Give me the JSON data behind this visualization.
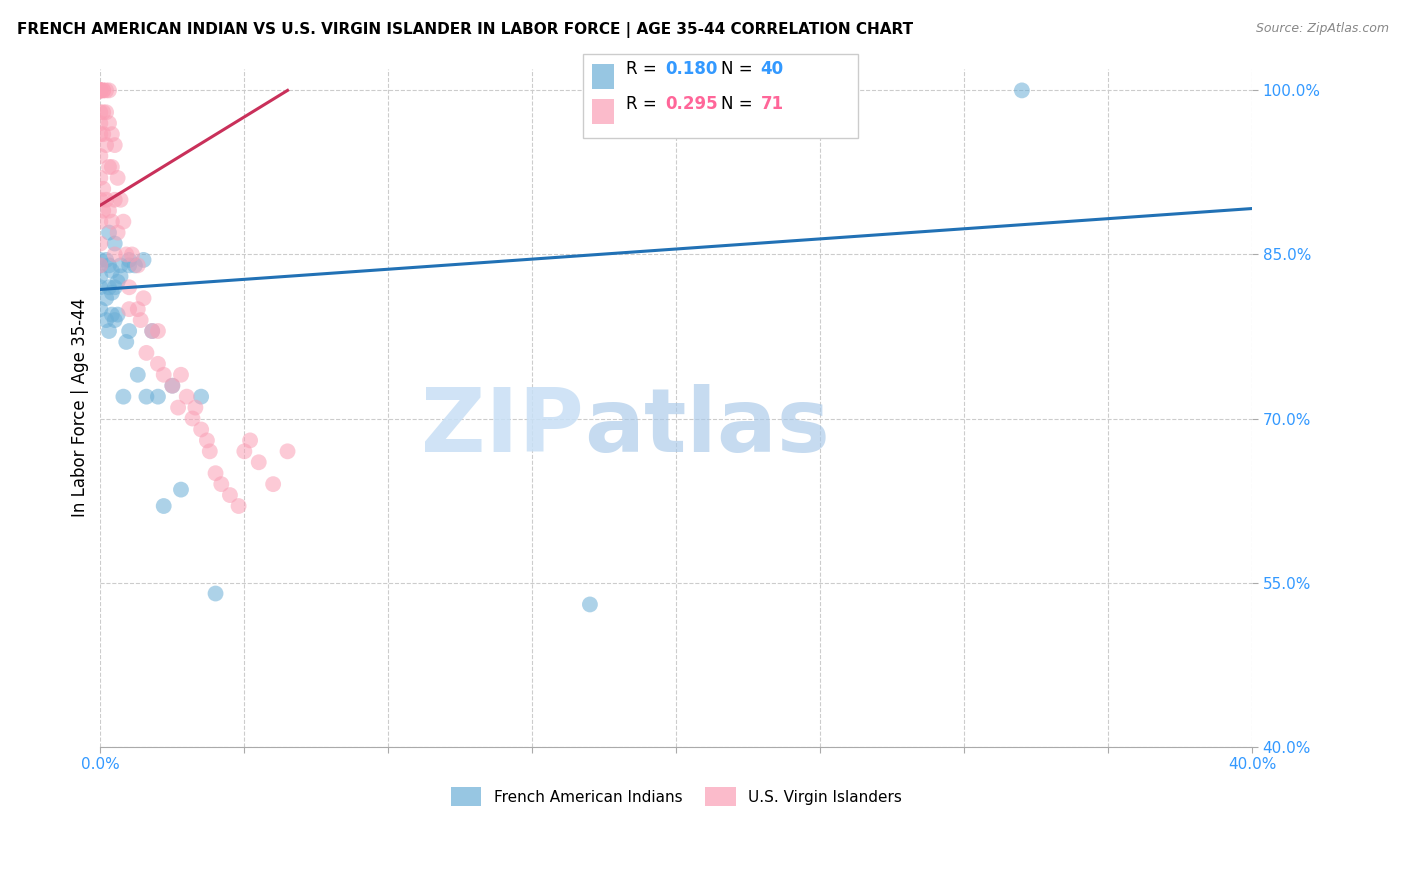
{
  "title": "FRENCH AMERICAN INDIAN VS U.S. VIRGIN ISLANDER IN LABOR FORCE | AGE 35-44 CORRELATION CHART",
  "source": "Source: ZipAtlas.com",
  "ylabel": "In Labor Force | Age 35-44",
  "xlim": [
    0.0,
    0.4
  ],
  "ylim": [
    0.4,
    1.02
  ],
  "yticks": [
    0.4,
    0.55,
    0.7,
    0.85,
    1.0
  ],
  "ytick_labels": [
    "40.0%",
    "55.0%",
    "70.0%",
    "85.0%",
    "100.0%"
  ],
  "xticks": [
    0.0,
    0.05,
    0.1,
    0.15,
    0.2,
    0.25,
    0.3,
    0.35,
    0.4
  ],
  "xtick_labels": [
    "0.0%",
    "",
    "",
    "",
    "",
    "",
    "",
    "",
    "40.0%"
  ],
  "blue_R": 0.18,
  "blue_N": 40,
  "pink_R": 0.295,
  "pink_N": 71,
  "blue_color": "#6baed6",
  "pink_color": "#fa9fb5",
  "blue_line_color": "#2171b5",
  "pink_line_color": "#c9305a",
  "watermark_zip": "ZIP",
  "watermark_atlas": "atlas",
  "legend_label_blue": "French American Indians",
  "legend_label_pink": "U.S. Virgin Islanders",
  "blue_scatter_x": [
    0.0,
    0.0,
    0.0,
    0.0,
    0.0,
    0.002,
    0.002,
    0.002,
    0.003,
    0.003,
    0.003,
    0.003,
    0.004,
    0.004,
    0.004,
    0.005,
    0.005,
    0.005,
    0.006,
    0.006,
    0.007,
    0.007,
    0.008,
    0.009,
    0.01,
    0.01,
    0.01,
    0.012,
    0.013,
    0.015,
    0.016,
    0.018,
    0.02,
    0.022,
    0.025,
    0.028,
    0.035,
    0.04,
    0.17,
    0.32
  ],
  "blue_scatter_y": [
    0.8,
    0.82,
    0.84,
    0.845,
    0.83,
    0.79,
    0.81,
    0.845,
    0.78,
    0.82,
    0.84,
    0.87,
    0.795,
    0.815,
    0.835,
    0.79,
    0.82,
    0.86,
    0.795,
    0.825,
    0.83,
    0.84,
    0.72,
    0.77,
    0.84,
    0.845,
    0.78,
    0.84,
    0.74,
    0.845,
    0.72,
    0.78,
    0.72,
    0.62,
    0.73,
    0.635,
    0.72,
    0.54,
    0.53,
    1.0
  ],
  "pink_scatter_x": [
    0.0,
    0.0,
    0.0,
    0.0,
    0.0,
    0.0,
    0.0,
    0.0,
    0.0,
    0.0,
    0.0,
    0.0,
    0.0,
    0.0,
    0.0,
    0.0,
    0.001,
    0.001,
    0.001,
    0.001,
    0.001,
    0.001,
    0.002,
    0.002,
    0.002,
    0.002,
    0.003,
    0.003,
    0.003,
    0.003,
    0.004,
    0.004,
    0.004,
    0.005,
    0.005,
    0.005,
    0.006,
    0.006,
    0.007,
    0.008,
    0.009,
    0.01,
    0.01,
    0.011,
    0.013,
    0.013,
    0.014,
    0.015,
    0.016,
    0.018,
    0.02,
    0.02,
    0.022,
    0.025,
    0.027,
    0.028,
    0.03,
    0.032,
    0.033,
    0.035,
    0.037,
    0.038,
    0.04,
    0.042,
    0.045,
    0.048,
    0.05,
    0.052,
    0.055,
    0.06,
    0.065
  ],
  "pink_scatter_y": [
    1.0,
    1.0,
    1.0,
    1.0,
    1.0,
    1.0,
    1.0,
    0.98,
    0.97,
    0.96,
    0.94,
    0.92,
    0.9,
    0.88,
    0.86,
    0.84,
    1.0,
    1.0,
    0.98,
    0.96,
    0.91,
    0.89,
    1.0,
    0.98,
    0.95,
    0.9,
    1.0,
    0.97,
    0.93,
    0.89,
    0.96,
    0.93,
    0.88,
    0.95,
    0.9,
    0.85,
    0.92,
    0.87,
    0.9,
    0.88,
    0.85,
    0.82,
    0.8,
    0.85,
    0.84,
    0.8,
    0.79,
    0.81,
    0.76,
    0.78,
    0.75,
    0.78,
    0.74,
    0.73,
    0.71,
    0.74,
    0.72,
    0.7,
    0.71,
    0.69,
    0.68,
    0.67,
    0.65,
    0.64,
    0.63,
    0.62,
    0.67,
    0.68,
    0.66,
    0.64,
    0.67
  ],
  "blue_trend_x": [
    0.0,
    0.4
  ],
  "blue_trend_y": [
    0.818,
    0.892
  ],
  "pink_trend_x": [
    0.0,
    0.065
  ],
  "pink_trend_y": [
    0.895,
    1.0
  ]
}
